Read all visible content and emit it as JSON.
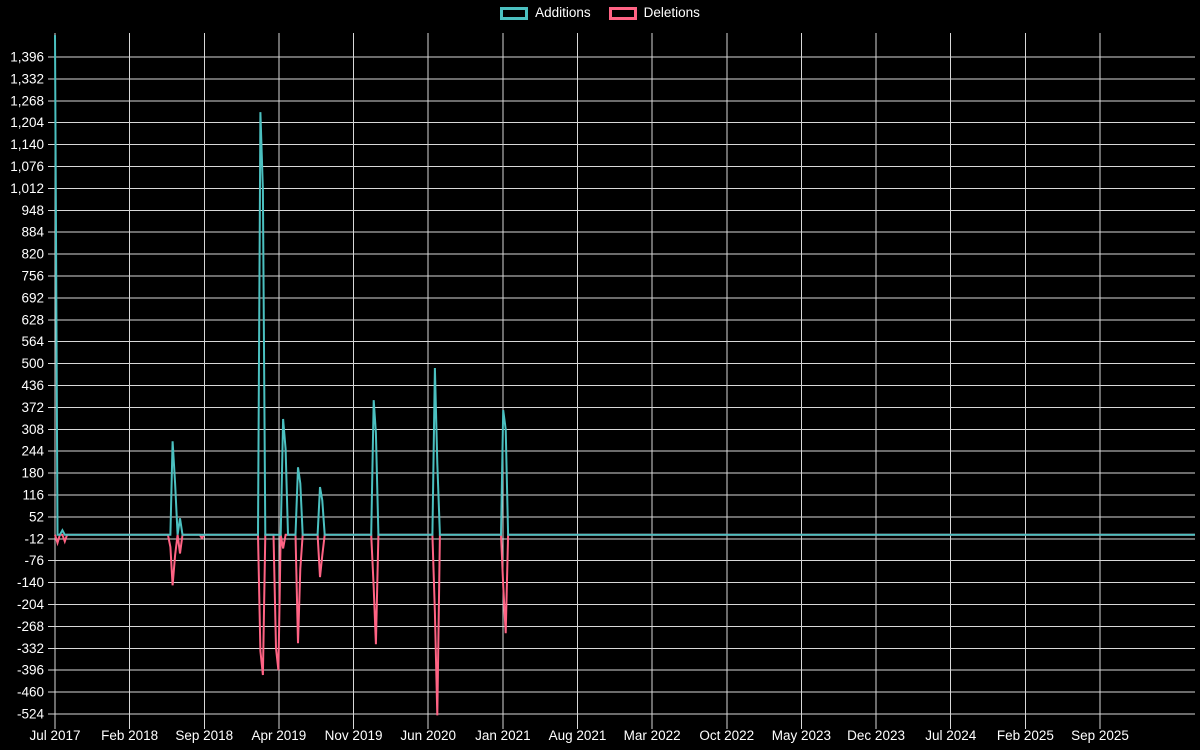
{
  "chart_data": {
    "type": "line",
    "title": "",
    "legend": {
      "position": "top",
      "entries": [
        {
          "label": "Additions",
          "color": "#4bc0c0"
        },
        {
          "label": "Deletions",
          "color": "#ff6384"
        }
      ]
    },
    "colors": {
      "background": "#000000",
      "grid_line": "#d8d8d8",
      "text": "#ffffff",
      "additions": "#4bc0c0",
      "deletions": "#ff6384"
    },
    "x": {
      "tick_interval_months": 7,
      "tick_labels": [
        "Jul 2017",
        "Feb 2018",
        "Sep 2018",
        "Apr 2019",
        "Nov 2019",
        "Jun 2020",
        "Jan 2021",
        "Aug 2021",
        "Mar 2022",
        "Oct 2022",
        "May 2023",
        "Dec 2023",
        "Jul 2024",
        "Feb 2025",
        "Sep 2025"
      ]
    },
    "y": {
      "tick_step": 64,
      "tick_values": [
        1396,
        1332,
        1268,
        1204,
        1140,
        1076,
        1012,
        948,
        884,
        820,
        756,
        692,
        628,
        564,
        500,
        436,
        372,
        308,
        244,
        180,
        116,
        52,
        -12,
        -76,
        -140,
        -204,
        -268,
        -332,
        -396,
        -460,
        -524
      ],
      "tick_labels": [
        "1,396",
        "1,332",
        "1,268",
        "1,204",
        "1,140",
        "1,076",
        "1,012",
        "948",
        "884",
        "820",
        "756",
        "692",
        "628",
        "564",
        "500",
        "436",
        "372",
        "308",
        "244",
        "180",
        "116",
        "52",
        "-12",
        "-76",
        "-140",
        "-204",
        "-268",
        "-332",
        "-396",
        "-460",
        "-524"
      ]
    },
    "baseline_value": 0,
    "series": [
      {
        "name": "Additions",
        "color": "#4bc0c0",
        "events": [
          {
            "date": "2017-07-01",
            "value": 1460
          },
          {
            "date": "2017-07-22",
            "value": 13
          },
          {
            "date": "2018-06-02",
            "value": 273
          },
          {
            "date": "2018-06-09",
            "value": 150
          },
          {
            "date": "2018-06-23",
            "value": 48
          },
          {
            "date": "2019-02-09",
            "value": 1235
          },
          {
            "date": "2019-02-16",
            "value": 1007
          },
          {
            "date": "2019-04-13",
            "value": 338
          },
          {
            "date": "2019-04-20",
            "value": 250
          },
          {
            "date": "2019-05-25",
            "value": 197
          },
          {
            "date": "2019-06-01",
            "value": 150
          },
          {
            "date": "2019-07-27",
            "value": 139
          },
          {
            "date": "2019-08-03",
            "value": 100
          },
          {
            "date": "2019-12-28",
            "value": 393
          },
          {
            "date": "2020-01-04",
            "value": 297
          },
          {
            "date": "2020-06-20",
            "value": 487
          },
          {
            "date": "2020-06-27",
            "value": 209
          },
          {
            "date": "2021-01-02",
            "value": 364
          },
          {
            "date": "2021-01-09",
            "value": 308
          }
        ]
      },
      {
        "name": "Deletions",
        "color": "#ff6384",
        "events": [
          {
            "date": "2017-07-08",
            "value": -24
          },
          {
            "date": "2017-07-29",
            "value": -20
          },
          {
            "date": "2018-05-26",
            "value": -36
          },
          {
            "date": "2018-06-02",
            "value": -148
          },
          {
            "date": "2018-06-09",
            "value": -60
          },
          {
            "date": "2018-06-23",
            "value": -55
          },
          {
            "date": "2018-08-25",
            "value": -10
          },
          {
            "date": "2019-02-09",
            "value": -340
          },
          {
            "date": "2019-02-16",
            "value": -410
          },
          {
            "date": "2019-03-23",
            "value": -332
          },
          {
            "date": "2019-03-30",
            "value": -396
          },
          {
            "date": "2019-04-13",
            "value": -40
          },
          {
            "date": "2019-05-25",
            "value": -317
          },
          {
            "date": "2019-06-01",
            "value": -100
          },
          {
            "date": "2019-07-27",
            "value": -124
          },
          {
            "date": "2019-08-03",
            "value": -60
          },
          {
            "date": "2019-12-28",
            "value": -154
          },
          {
            "date": "2020-01-04",
            "value": -320
          },
          {
            "date": "2020-06-20",
            "value": -227
          },
          {
            "date": "2020-06-27",
            "value": -528
          },
          {
            "date": "2021-01-02",
            "value": -148
          },
          {
            "date": "2021-01-09",
            "value": -288
          }
        ]
      }
    ]
  }
}
